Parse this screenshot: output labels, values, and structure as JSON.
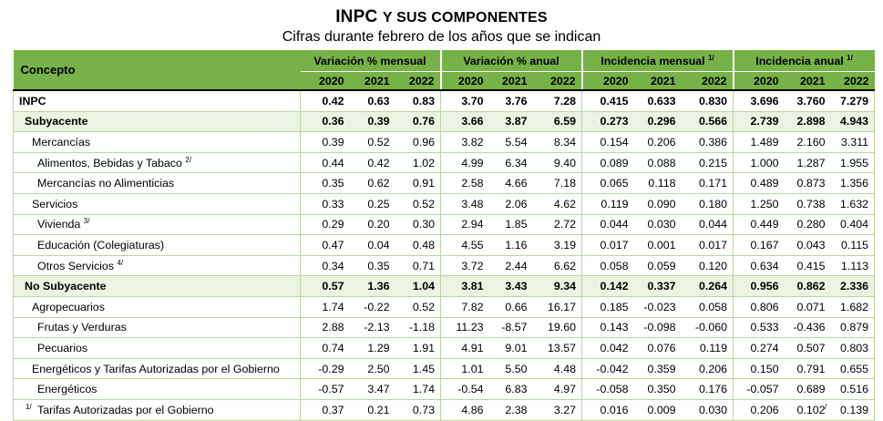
{
  "title": {
    "main": "INPC",
    "rest": "Y SUS COMPONENTES",
    "subtitle": "Cifras durante febrero de los años que se indican"
  },
  "header": {
    "concept": "Concepto",
    "groups": [
      {
        "label": "Variación % mensual",
        "sup": ""
      },
      {
        "label": "Variación % anual",
        "sup": ""
      },
      {
        "label": "Incidencia mensual",
        "sup": "1/"
      },
      {
        "label": "Incidencia anual",
        "sup": "1/"
      }
    ],
    "years": [
      "2020",
      "2021",
      "2022"
    ]
  },
  "rows": [
    {
      "label": "INPC",
      "sup": "",
      "level": 0,
      "bold": true,
      "shade": false,
      "values": [
        "0.42",
        "0.63",
        "0.83",
        "3.70",
        "3.76",
        "7.28",
        "0.415",
        "0.633",
        "0.830",
        "3.696",
        "3.760",
        "7.279"
      ]
    },
    {
      "label": "Subyacente",
      "sup": "",
      "level": 1,
      "bold": true,
      "shade": true,
      "values": [
        "0.36",
        "0.39",
        "0.76",
        "3.66",
        "3.87",
        "6.59",
        "0.273",
        "0.296",
        "0.566",
        "2.739",
        "2.898",
        "4.943"
      ]
    },
    {
      "label": "Mercancías",
      "sup": "",
      "level": 2,
      "bold": false,
      "shade": false,
      "values": [
        "0.39",
        "0.52",
        "0.96",
        "3.82",
        "5.54",
        "8.34",
        "0.154",
        "0.206",
        "0.386",
        "1.489",
        "2.160",
        "3.311"
      ]
    },
    {
      "label": "Alimentos, Bebidas y Tabaco",
      "sup": "2/",
      "level": 3,
      "bold": false,
      "shade": false,
      "values": [
        "0.44",
        "0.42",
        "1.02",
        "4.99",
        "6.34",
        "9.40",
        "0.089",
        "0.088",
        "0.215",
        "1.000",
        "1.287",
        "1.955"
      ]
    },
    {
      "label": "Mercancías no Alimenticias",
      "sup": "",
      "level": 3,
      "bold": false,
      "shade": false,
      "values": [
        "0.35",
        "0.62",
        "0.91",
        "2.58",
        "4.66",
        "7.18",
        "0.065",
        "0.118",
        "0.171",
        "0.489",
        "0.873",
        "1.356"
      ]
    },
    {
      "label": "Servicios",
      "sup": "",
      "level": 2,
      "bold": false,
      "shade": false,
      "values": [
        "0.33",
        "0.25",
        "0.52",
        "3.48",
        "2.06",
        "4.62",
        "0.119",
        "0.090",
        "0.180",
        "1.250",
        "0.738",
        "1.632"
      ]
    },
    {
      "label": "Vivienda",
      "sup": "3/",
      "level": 3,
      "bold": false,
      "shade": false,
      "values": [
        "0.29",
        "0.20",
        "0.30",
        "2.94",
        "1.85",
        "2.72",
        "0.044",
        "0.030",
        "0.044",
        "0.449",
        "0.280",
        "0.404"
      ]
    },
    {
      "label": "Educación (Colegiaturas)",
      "sup": "",
      "level": 3,
      "bold": false,
      "shade": false,
      "values": [
        "0.47",
        "0.04",
        "0.48",
        "4.55",
        "1.16",
        "3.19",
        "0.017",
        "0.001",
        "0.017",
        "0.167",
        "0.043",
        "0.115"
      ]
    },
    {
      "label": "Otros Servicios",
      "sup": "4/",
      "level": 3,
      "bold": false,
      "shade": false,
      "values": [
        "0.34",
        "0.35",
        "0.71",
        "3.72",
        "2.44",
        "6.62",
        "0.058",
        "0.059",
        "0.120",
        "0.634",
        "0.415",
        "1.113"
      ]
    },
    {
      "label": "No Subyacente",
      "sup": "",
      "level": 1,
      "bold": true,
      "shade": true,
      "values": [
        "0.57",
        "1.36",
        "1.04",
        "3.81",
        "3.43",
        "9.34",
        "0.142",
        "0.337",
        "0.264",
        "0.956",
        "0.862",
        "2.336"
      ]
    },
    {
      "label": "Agropecuarios",
      "sup": "",
      "level": 2,
      "bold": false,
      "shade": false,
      "values": [
        "1.74",
        "-0.22",
        "0.52",
        "7.82",
        "0.66",
        "16.17",
        "0.185",
        "-0.023",
        "0.058",
        "0.806",
        "0.071",
        "1.682"
      ]
    },
    {
      "label": "Frutas y Verduras",
      "sup": "",
      "level": 3,
      "bold": false,
      "shade": false,
      "values": [
        "2.88",
        "-2.13",
        "-1.18",
        "11.23",
        "-8.57",
        "19.60",
        "0.143",
        "-0.098",
        "-0.060",
        "0.533",
        "-0.436",
        "0.879"
      ]
    },
    {
      "label": "Pecuarios",
      "sup": "",
      "level": 3,
      "bold": false,
      "shade": false,
      "values": [
        "0.74",
        "1.29",
        "1.91",
        "4.91",
        "9.01",
        "13.57",
        "0.042",
        "0.076",
        "0.119",
        "0.274",
        "0.507",
        "0.803"
      ]
    },
    {
      "label": "Energéticos y Tarifas Autorizadas por el Gobierno",
      "sup": "",
      "level": 2,
      "bold": false,
      "shade": false,
      "values": [
        "-0.29",
        "2.50",
        "1.45",
        "1.01",
        "5.50",
        "4.48",
        "-0.042",
        "0.359",
        "0.206",
        "0.150",
        "0.791",
        "0.655"
      ]
    },
    {
      "label": "Energéticos",
      "sup": "",
      "level": 3,
      "bold": false,
      "shade": false,
      "values": [
        "-0.57",
        "3.47",
        "1.74",
        "-0.54",
        "6.83",
        "4.97",
        "-0.058",
        "0.350",
        "0.176",
        "-0.057",
        "0.689",
        "0.516"
      ]
    },
    {
      "label": "Tarifas Autorizadas por el Gobierno",
      "sup": "",
      "level": 3,
      "bold": false,
      "shade": false,
      "values": [
        "0.37",
        "0.21",
        "0.73",
        "4.86",
        "2.38",
        "3.27",
        "0.016",
        "0.009",
        "0.030",
        "0.206",
        "0.102",
        "0.139"
      ]
    }
  ],
  "footnotes": {
    "left": "1/",
    "right": "/"
  },
  "colors": {
    "header_bg": "#76b247",
    "shade_bg": "#ebf3e2",
    "rule": "#b9d89c"
  }
}
